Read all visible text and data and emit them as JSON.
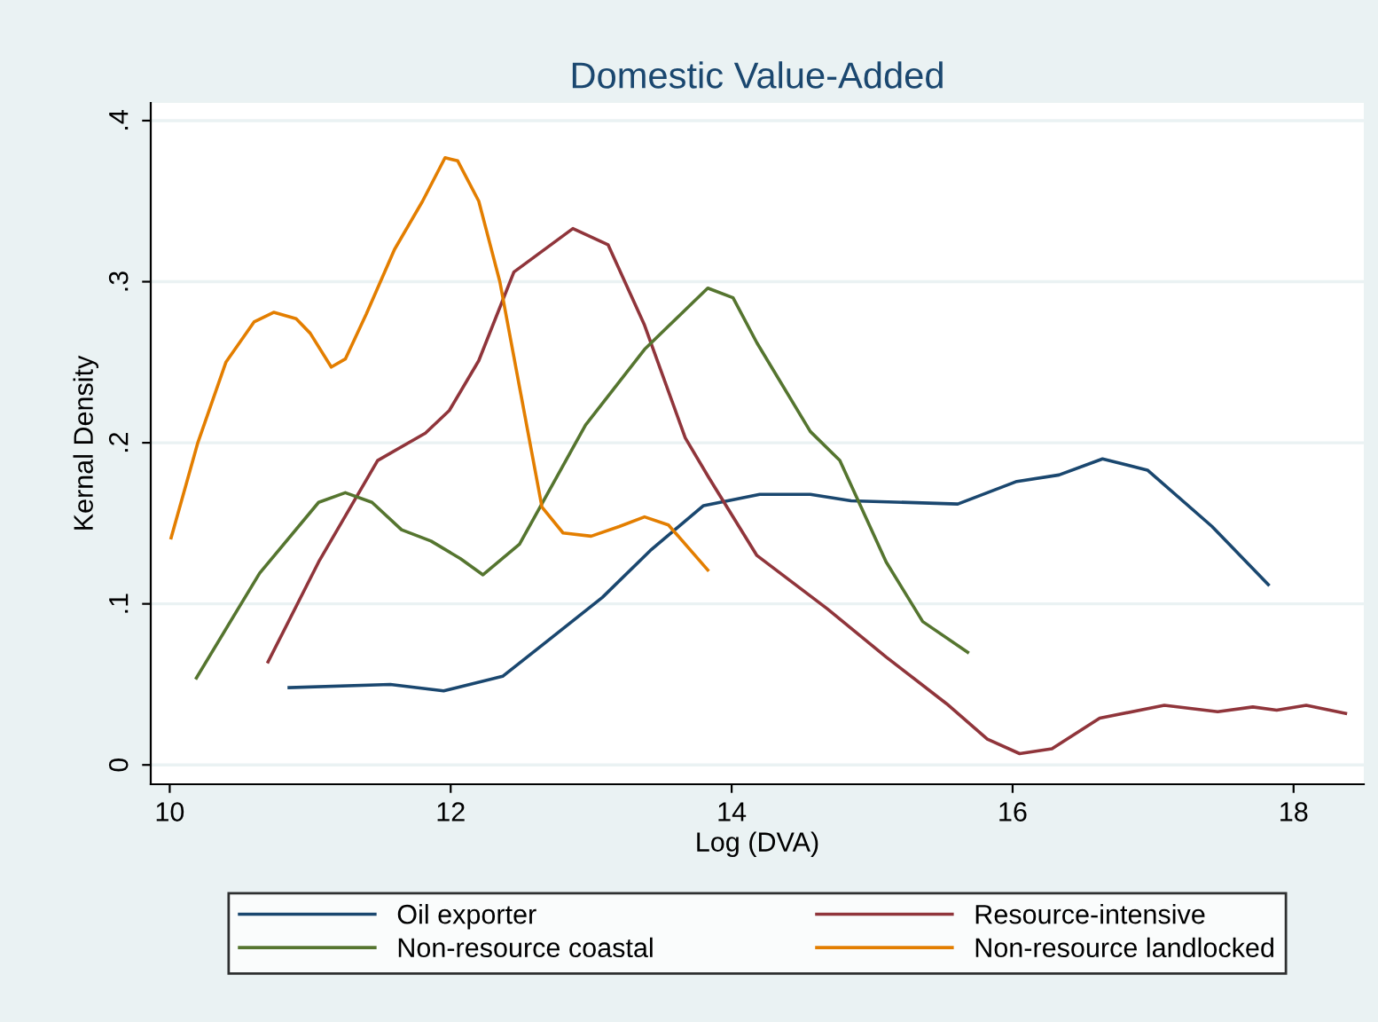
{
  "chart_data": {
    "type": "line",
    "title": "Domestic Value-Added",
    "xlabel": "Log (DVA)",
    "ylabel": "Kernal Density",
    "xlim": [
      9.865,
      18.5
    ],
    "ylim": [
      -0.012,
      0.411
    ],
    "xticks": [
      10,
      12,
      14,
      16,
      18
    ],
    "yticks": [
      {
        "value": 0,
        "label": "0"
      },
      {
        "value": 0.1,
        "label": ".1"
      },
      {
        "value": 0.2,
        "label": ".2"
      },
      {
        "value": 0.3,
        "label": ".3"
      },
      {
        "value": 0.4,
        "label": ".4"
      }
    ],
    "grid": "y",
    "legend": "bottom",
    "line_style": "solid",
    "marker": "none",
    "series": [
      {
        "name": "Oil exporter",
        "color": "#1a476f",
        "x": [
          10.85,
          11.57,
          11.95,
          12.37,
          12.66,
          13.08,
          13.42,
          13.8,
          14.2,
          14.56,
          14.85,
          15.61,
          16.03,
          16.33,
          16.64,
          16.96,
          17.42,
          17.82
        ],
        "values": [
          0.048,
          0.05,
          0.046,
          0.055,
          0.075,
          0.104,
          0.133,
          0.161,
          0.168,
          0.168,
          0.164,
          0.162,
          0.176,
          0.18,
          0.19,
          0.183,
          0.148,
          0.112
        ]
      },
      {
        "name": "Resource-intensive",
        "color": "#90353b",
        "x": [
          10.7,
          11.06,
          11.48,
          11.82,
          11.99,
          12.2,
          12.45,
          12.87,
          13.12,
          13.38,
          13.67,
          13.84,
          14.18,
          14.68,
          15.1,
          15.53,
          15.82,
          16.05,
          16.28,
          16.62,
          17.08,
          17.46,
          17.71,
          17.88,
          18.09,
          18.37
        ],
        "values": [
          0.064,
          0.126,
          0.189,
          0.206,
          0.22,
          0.251,
          0.306,
          0.333,
          0.323,
          0.273,
          0.203,
          0.178,
          0.13,
          0.097,
          0.067,
          0.038,
          0.016,
          0.007,
          0.01,
          0.029,
          0.037,
          0.033,
          0.036,
          0.034,
          0.037,
          0.032
        ]
      },
      {
        "name": "Non-resource coastal",
        "color": "#55752f",
        "x": [
          10.19,
          10.64,
          11.06,
          11.25,
          11.44,
          11.65,
          11.86,
          12.07,
          12.23,
          12.49,
          12.75,
          12.96,
          13.38,
          13.83,
          14.01,
          14.18,
          14.56,
          14.77,
          15.1,
          15.36,
          15.68
        ],
        "values": [
          0.054,
          0.119,
          0.163,
          0.169,
          0.163,
          0.146,
          0.139,
          0.128,
          0.118,
          0.137,
          0.178,
          0.211,
          0.258,
          0.296,
          0.29,
          0.262,
          0.207,
          0.189,
          0.126,
          0.089,
          0.07
        ]
      },
      {
        "name": "Non-resource landlocked",
        "color": "#e37e00",
        "x": [
          10.01,
          10.2,
          10.4,
          10.6,
          10.74,
          10.9,
          11.0,
          11.15,
          11.25,
          11.4,
          11.6,
          11.8,
          11.96,
          12.05,
          12.2,
          12.35,
          12.5,
          12.65,
          12.8,
          13.0,
          13.2,
          13.38,
          13.55,
          13.83
        ],
        "values": [
          0.141,
          0.2,
          0.25,
          0.275,
          0.281,
          0.277,
          0.268,
          0.247,
          0.252,
          0.28,
          0.32,
          0.35,
          0.377,
          0.375,
          0.35,
          0.3,
          0.23,
          0.16,
          0.144,
          0.142,
          0.148,
          0.154,
          0.149,
          0.121
        ]
      }
    ]
  }
}
